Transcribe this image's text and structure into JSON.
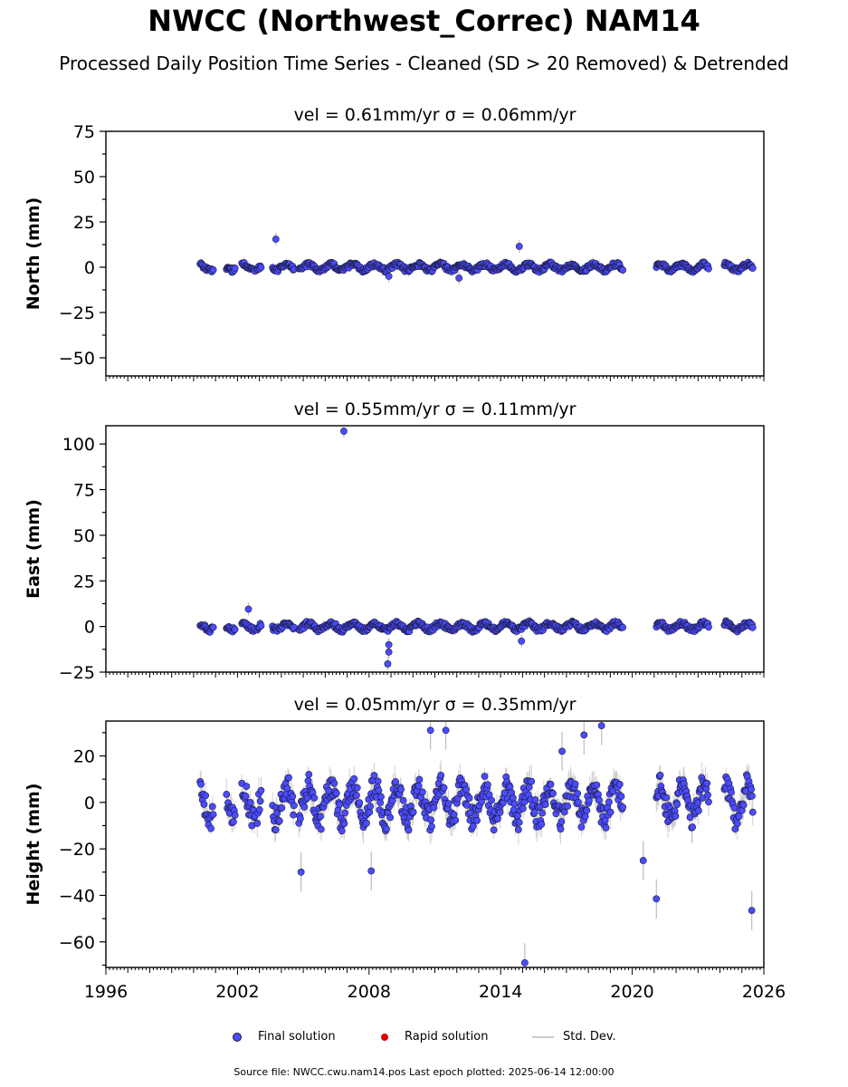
{
  "title": "NWCC (Northwest_Correc) NAM14",
  "subtitle": "Processed Daily Position Time Series - Cleaned (SD > 20 Removed) & Detrended",
  "legend": {
    "final": {
      "label": "Final solution",
      "color": "#4b4bff"
    },
    "rapid": {
      "label": "Rapid solution",
      "color": "#dd0000"
    },
    "std": {
      "label": "Std. Dev.",
      "color": "#c8c8c8"
    }
  },
  "source_text": "Source file: NWCC.cwu.nam14.pos  Last epoch plotted: 2025-06-14 12:00:00",
  "chart_data": [
    {
      "type": "scatter",
      "title": "vel = 0.61mm/yr   σ = 0.06mm/yr",
      "ylabel": "North (mm)",
      "xlim": [
        1996,
        2026
      ],
      "ylim": [
        -60,
        75
      ],
      "yticks": [
        75,
        50,
        25,
        0,
        -25,
        -50
      ],
      "xticks": [],
      "segments": [
        [
          2000.3,
          2000.9
        ],
        [
          2001.5,
          2001.9
        ],
        [
          2002.2,
          2002.8
        ],
        [
          2002.9,
          2003.1
        ],
        [
          2003.6,
          2004.6
        ],
        [
          2004.8,
          2019.6
        ],
        [
          2021.1,
          2023.5
        ],
        [
          2024.2,
          2025.5
        ]
      ],
      "spread": 1.8,
      "std": 2.5,
      "outliers": [
        [
          2003.75,
          15.5
        ],
        [
          2014.85,
          11.5
        ],
        [
          2012.1,
          -6
        ],
        [
          2008.9,
          -5
        ]
      ]
    },
    {
      "type": "scatter",
      "title": "vel = 0.55mm/yr   σ = 0.11mm/yr",
      "ylabel": "East (mm)",
      "xlim": [
        1996,
        2026
      ],
      "ylim": [
        -25,
        110
      ],
      "yticks": [
        100,
        75,
        50,
        25,
        0,
        -25
      ],
      "xticks": [],
      "segments": [
        [
          2000.3,
          2000.9
        ],
        [
          2001.5,
          2001.9
        ],
        [
          2002.2,
          2002.8
        ],
        [
          2002.9,
          2003.1
        ],
        [
          2003.6,
          2004.6
        ],
        [
          2004.8,
          2019.6
        ],
        [
          2021.1,
          2023.5
        ],
        [
          2024.2,
          2025.5
        ]
      ],
      "spread": 2.0,
      "std": 2.5,
      "outliers": [
        [
          2006.85,
          107
        ],
        [
          2002.5,
          9.5
        ],
        [
          2008.9,
          -14
        ],
        [
          2008.9,
          -10
        ],
        [
          2008.85,
          -20.5
        ],
        [
          2014.95,
          -8
        ]
      ]
    },
    {
      "type": "scatter",
      "title": "vel = 0.05mm/yr   σ = 0.35mm/yr",
      "ylabel": "Height (mm)",
      "xlim": [
        1996,
        2026
      ],
      "ylim": [
        -71,
        35
      ],
      "yticks": [
        20,
        0,
        -20,
        -40,
        -60
      ],
      "xticks": [
        1996,
        2002,
        2008,
        2014,
        2020,
        2026
      ],
      "segments": [
        [
          2000.3,
          2000.9
        ],
        [
          2001.5,
          2001.9
        ],
        [
          2002.2,
          2002.8
        ],
        [
          2002.9,
          2003.1
        ],
        [
          2003.6,
          2004.6
        ],
        [
          2004.8,
          2019.6
        ],
        [
          2021.1,
          2023.5
        ],
        [
          2024.2,
          2025.5
        ]
      ],
      "spread": 8.0,
      "std": 6.0,
      "outliers": [
        [
          2015.1,
          -69
        ],
        [
          2021.1,
          -41.5
        ],
        [
          2025.45,
          -46.5
        ],
        [
          2004.9,
          -30
        ],
        [
          2008.1,
          -29.5
        ],
        [
          2018.6,
          33
        ],
        [
          2017.8,
          29
        ],
        [
          2011.5,
          31
        ],
        [
          2010.8,
          31
        ],
        [
          2020.5,
          -25
        ],
        [
          2016.8,
          22
        ]
      ]
    }
  ]
}
